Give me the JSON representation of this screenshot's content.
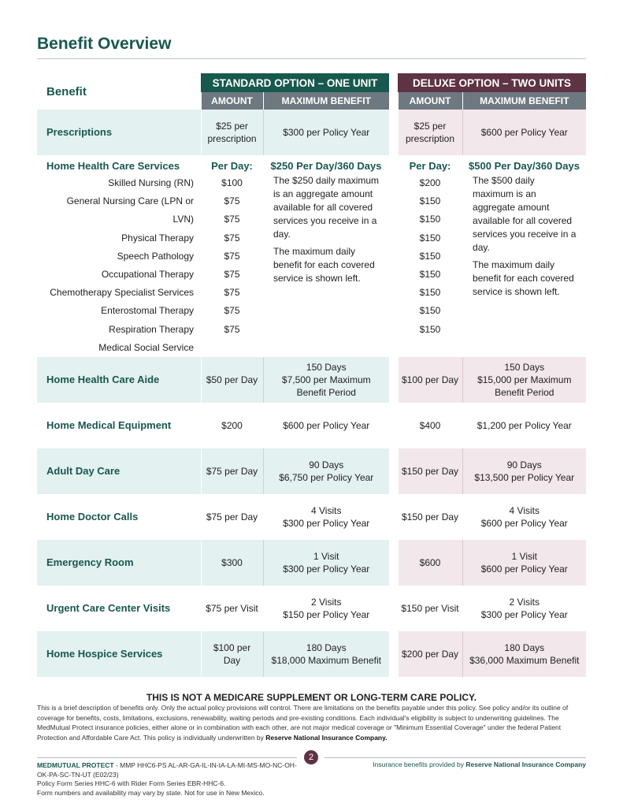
{
  "title": "Benefit Overview",
  "table": {
    "benefit_header": "Benefit",
    "standard_header": "STANDARD OPTION – ONE UNIT",
    "deluxe_header": "DELUXE OPTION – TWO UNITS",
    "amount_header": "AMOUNT",
    "max_header": "MAXIMUM BENEFIT",
    "hhc": {
      "label": "Home Health Care Services",
      "services": [
        "Skilled Nursing (RN)",
        "General Nursing Care (LPN or LVN)",
        "Physical Therapy",
        "Speech Pathology",
        "Occupational Therapy",
        "Chemotherapy Specialist Services",
        "Enterostomal Therapy",
        "Respiration Therapy",
        "Medical Social Service"
      ],
      "std_amount_head": "Per Day:",
      "std_amounts": [
        "$100",
        "$75",
        "$75",
        "$75",
        "$75",
        "$75",
        "$75",
        "$75",
        "$75"
      ],
      "std_max_head": "$250 Per Day/360 Days",
      "std_max_p1": "The $250 daily maximum is an aggregate amount available for all covered services you receive in a day.",
      "std_max_p2": "The maximum daily benefit for each covered service is shown left.",
      "dlx_amount_head": "Per Day:",
      "dlx_amounts": [
        "$200",
        "$150",
        "$150",
        "$150",
        "$150",
        "$150",
        "$150",
        "$150",
        "$150"
      ],
      "dlx_max_head": "$500 Per Day/360 Days",
      "dlx_max_p1": "The $500 daily maximum is an aggregate amount available for all covered services you receive in a day.",
      "dlx_max_p2": "The maximum daily benefit for each covered service is shown left."
    },
    "rows": [
      {
        "label": "Prescriptions",
        "std_amount": [
          "$25 per",
          "prescription"
        ],
        "std_max": [
          "$300 per Policy Year"
        ],
        "dlx_amount": [
          "$25 per",
          "prescription"
        ],
        "dlx_max": [
          "$600 per Policy Year"
        ]
      },
      {
        "label": "Home Health Care Aide",
        "std_amount": [
          "$50 per Day"
        ],
        "std_max": [
          "150 Days",
          "$7,500 per Maximum",
          "Benefit Period"
        ],
        "dlx_amount": [
          "$100 per Day"
        ],
        "dlx_max": [
          "150 Days",
          "$15,000 per Maximum",
          "Benefit Period"
        ]
      },
      {
        "label": "Home Medical Equipment",
        "std_amount": [
          "$200"
        ],
        "std_max": [
          "$600 per Policy Year"
        ],
        "dlx_amount": [
          "$400"
        ],
        "dlx_max": [
          "$1,200 per Policy Year"
        ]
      },
      {
        "label": "Adult Day Care",
        "std_amount": [
          "$75 per Day"
        ],
        "std_max": [
          "90 Days",
          "$6,750 per Policy Year"
        ],
        "dlx_amount": [
          "$150 per Day"
        ],
        "dlx_max": [
          "90 Days",
          "$13,500 per Policy Year"
        ]
      },
      {
        "label": "Home Doctor Calls",
        "std_amount": [
          "$75 per Day"
        ],
        "std_max": [
          "4 Visits",
          "$300 per Policy Year"
        ],
        "dlx_amount": [
          "$150 per Day"
        ],
        "dlx_max": [
          "4 Visits",
          "$600 per Policy Year"
        ]
      },
      {
        "label": "Emergency Room",
        "std_amount": [
          "$300"
        ],
        "std_max": [
          "1 Visit",
          "$300 per Policy Year"
        ],
        "dlx_amount": [
          "$600"
        ],
        "dlx_max": [
          "1 Visit",
          "$600 per Policy Year"
        ]
      },
      {
        "label": "Urgent Care Center Visits",
        "std_amount": [
          "$75 per Visit"
        ],
        "std_max": [
          "2 Visits",
          "$150 per Policy Year"
        ],
        "dlx_amount": [
          "$150 per Visit"
        ],
        "dlx_max": [
          "2 Visits",
          "$300 per Policy Year"
        ]
      },
      {
        "label": "Home Hospice Services",
        "std_amount": [
          "$100 per Day"
        ],
        "std_max": [
          "180 Days",
          "$18,000 Maximum Benefit"
        ],
        "dlx_amount": [
          "$200 per Day"
        ],
        "dlx_max": [
          "180 Days",
          "$36,000 Maximum Benefit"
        ]
      }
    ]
  },
  "disclaimer": {
    "heading": "THIS IS NOT A MEDICARE SUPPLEMENT OR LONG-TERM CARE POLICY.",
    "body": "This is a brief description of benefits only. Only the actual policy provisions will control. There are limitations on the benefits payable under this policy. See policy and/or its outline of coverage for benefits, costs, limitations, exclusions, renewability, waiting periods and pre-existing conditions. Each individual's eligibility is subject to underwriting guidelines. The MedMutual Protect insurance policies, either alone or in combination with each other, are not major medical coverage or \"Minimum Essential Coverage\" under the federal Patient Protection and Affordable Care Act. This policy is individually underwritten by ",
    "company": "Reserve National Insurance Company."
  },
  "footer": {
    "page_number": "2",
    "brand": "MEDMUTUAL PROTECT",
    "form_code": " - MMP HHC6-PS AL-AR-GA-IL-IN-IA-LA-MI-MS-MO-NC-OH-OK-PA-SC-TN-UT (E02/23)",
    "line2": "Policy Form Series HHC-6 with Rider Form Series EBR-HHC-6.",
    "line3": "Form numbers and availability may vary by state. Not for use in New Mexico.",
    "provided_by": "Insurance benefits provided by ",
    "provider": "Reserve National Insurance Company"
  },
  "colors": {
    "teal": "#17594f",
    "maroon": "#5e3343",
    "gray": "#6e7880",
    "teal_tint": "#e3f1f0",
    "maroon_tint": "#f2e7ea"
  }
}
